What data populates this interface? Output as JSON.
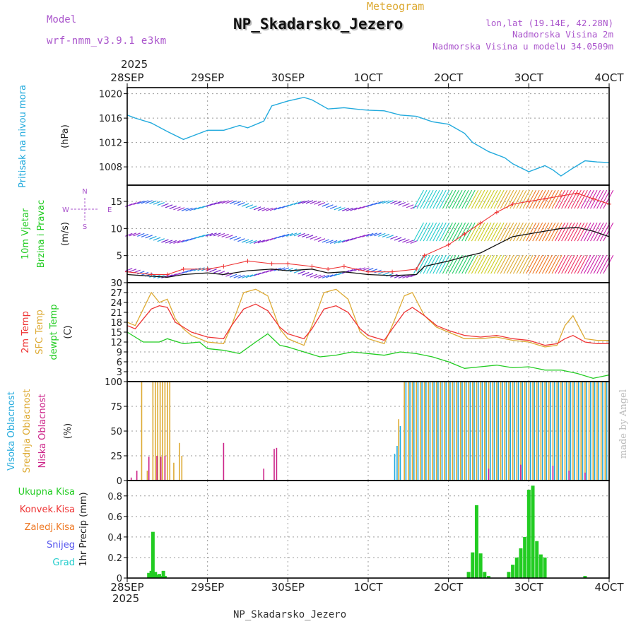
{
  "header": {
    "model_label": "Model",
    "model_name": "wrf-nmm_v3.9.1 e3km",
    "subtitle": "Meteogram",
    "title": "NP_Skadarsko_Jezero",
    "coords": "lon,lat (19.14E, 42.28N)",
    "elevation": "Nadmorska Visina 2m",
    "model_elevation": "Nadmorska Visina u modelu 34.0509m"
  },
  "year_top": "2025",
  "year_bottom": "2025",
  "footer": "NP_Skadarsko_Jezero",
  "credit": "made by Angel",
  "colors": {
    "pressure": "#22aadd",
    "temp2m": "#ee3333",
    "sfc": "#ddaa33",
    "dewpt": "#22cc22",
    "high": "#22aadd",
    "mid": "#ddaa33",
    "low": "#cc2288",
    "precip": "#22cc22",
    "conv": "#ee3333",
    "snow": "#5555ee",
    "grad": "#22cccc",
    "frz": "#ee7722",
    "wind": "#111111",
    "gust": "#ee3333"
  },
  "chart_data": [
    {
      "type": "line",
      "name": "pressure-panel",
      "ylabel": "Pritisak na nivou mora",
      "unit": "(hPa)",
      "ylim": [
        1005,
        1021
      ],
      "yticks": [
        1008,
        1012,
        1016,
        1020
      ],
      "xlim": [
        0,
        6
      ],
      "series": [
        {
          "name": "Pritisak",
          "x": [
            0,
            0.1,
            0.3,
            0.5,
            0.7,
            0.8,
            1.0,
            1.2,
            1.4,
            1.5,
            1.7,
            1.8,
            2.0,
            2.2,
            2.3,
            2.5,
            2.7,
            2.9,
            3.0,
            3.2,
            3.4,
            3.6,
            3.8,
            4.0,
            4.2,
            4.3,
            4.5,
            4.7,
            4.8,
            5.0,
            5.2,
            5.3,
            5.4,
            5.55,
            5.7,
            5.85,
            6.0
          ],
          "values": [
            1016.5,
            1016.0,
            1015.2,
            1013.8,
            1012.5,
            1013.0,
            1014.0,
            1014.0,
            1014.8,
            1014.4,
            1015.5,
            1018.0,
            1018.8,
            1019.4,
            1019.0,
            1017.5,
            1017.7,
            1017.4,
            1017.3,
            1017.2,
            1016.5,
            1016.3,
            1015.4,
            1015.0,
            1013.5,
            1012.0,
            1010.5,
            1009.5,
            1008.5,
            1007.2,
            1008.2,
            1007.5,
            1006.5,
            1007.8,
            1009.0,
            1008.8,
            1008.7
          ]
        }
      ]
    },
    {
      "type": "line",
      "name": "wind-panel",
      "ylabel": "10m Vjetar",
      "ylabel2": "Brzina i Pravac",
      "unit": "(m/s)",
      "compass": {
        "n": "N",
        "e": "E",
        "s": "S",
        "w": "W"
      },
      "ylim": [
        0,
        18
      ],
      "yticks": [
        0,
        5,
        10,
        15
      ],
      "xlim": [
        0,
        6
      ],
      "series": [
        {
          "name": "speed",
          "x": [
            0,
            0.3,
            0.5,
            0.7,
            1.0,
            1.2,
            1.5,
            1.8,
            2.0,
            2.3,
            2.5,
            2.7,
            3.0,
            3.3,
            3.6,
            3.7,
            4.0,
            4.2,
            4.4,
            4.6,
            4.8,
            5.0,
            5.2,
            5.4,
            5.6,
            5.8,
            6.0
          ],
          "values": [
            1.5,
            1.2,
            1.0,
            1.5,
            1.8,
            1.5,
            2.2,
            2.5,
            2.2,
            2.5,
            1.8,
            2.0,
            1.5,
            1.3,
            1.5,
            3.0,
            4.0,
            4.8,
            5.5,
            7.0,
            8.5,
            9.0,
            9.5,
            10.0,
            10.2,
            9.5,
            8.5
          ]
        },
        {
          "name": "gust",
          "x": [
            0,
            0.3,
            0.5,
            0.7,
            1.0,
            1.2,
            1.5,
            1.8,
            2.0,
            2.3,
            2.5,
            2.7,
            3.0,
            3.3,
            3.6,
            3.7,
            4.0,
            4.2,
            4.4,
            4.6,
            4.8,
            5.0,
            5.2,
            5.4,
            5.6,
            5.8,
            6.0
          ],
          "values": [
            2.0,
            1.5,
            1.5,
            2.5,
            2.5,
            3.0,
            4.0,
            3.5,
            3.5,
            3.0,
            2.5,
            3.0,
            2.0,
            2.0,
            2.5,
            5.0,
            7.0,
            9.0,
            11.0,
            13.0,
            14.5,
            15.0,
            15.5,
            16.0,
            16.5,
            15.5,
            14.5
          ]
        }
      ]
    },
    {
      "type": "line",
      "name": "temperature-panel",
      "ylabels": [
        "2m Temp",
        "SFC Temp",
        "dewpt Temp"
      ],
      "unit": "(C)",
      "ylim": [
        0,
        30
      ],
      "yticks": [
        0,
        3,
        6,
        9,
        12,
        15,
        18,
        21,
        24,
        27,
        30
      ],
      "xlim": [
        0,
        6
      ],
      "series": [
        {
          "name": "2m Temp",
          "x": [
            0,
            0.1,
            0.2,
            0.3,
            0.4,
            0.5,
            0.6,
            0.7,
            0.8,
            1.0,
            1.2,
            1.3,
            1.45,
            1.6,
            1.75,
            1.9,
            2.0,
            2.2,
            2.3,
            2.45,
            2.6,
            2.75,
            2.9,
            3.0,
            3.2,
            3.3,
            3.45,
            3.55,
            3.7,
            3.85,
            4.0,
            4.2,
            4.4,
            4.6,
            4.8,
            5.0,
            5.2,
            5.35,
            5.45,
            5.55,
            5.7,
            5.85,
            6.0
          ],
          "values": [
            17,
            16,
            19,
            22,
            23,
            22.5,
            18,
            16.5,
            15,
            13.5,
            13,
            17,
            22,
            23.5,
            21.5,
            16.5,
            14.5,
            13,
            16,
            22,
            23,
            21,
            16,
            14,
            12.5,
            16,
            21,
            22.5,
            20,
            17,
            15.5,
            14,
            13.5,
            14,
            13,
            12.5,
            11,
            11.5,
            13,
            14,
            12,
            11.5,
            11.5
          ]
        },
        {
          "name": "SFC Temp",
          "x": [
            0,
            0.1,
            0.2,
            0.3,
            0.4,
            0.5,
            0.6,
            0.7,
            0.8,
            1.0,
            1.2,
            1.3,
            1.45,
            1.6,
            1.75,
            1.9,
            2.0,
            2.2,
            2.3,
            2.45,
            2.6,
            2.75,
            2.9,
            3.0,
            3.2,
            3.3,
            3.45,
            3.55,
            3.7,
            3.85,
            4.0,
            4.2,
            4.4,
            4.6,
            4.8,
            5.0,
            5.2,
            5.35,
            5.45,
            5.55,
            5.7,
            5.85,
            6.0
          ],
          "values": [
            18,
            17,
            22,
            27,
            24,
            25,
            19,
            16,
            14,
            12,
            11.5,
            17,
            27,
            28,
            26,
            16,
            13,
            11,
            17,
            27,
            28,
            25,
            15,
            13,
            11.5,
            17,
            26,
            27,
            20,
            16.5,
            15,
            13,
            13,
            13.5,
            12.5,
            12,
            10.5,
            11,
            17,
            20,
            13,
            12.5,
            12.5
          ]
        },
        {
          "name": "dewpt Temp",
          "x": [
            0,
            0.2,
            0.4,
            0.5,
            0.7,
            0.9,
            1.0,
            1.2,
            1.4,
            1.6,
            1.75,
            1.9,
            2.0,
            2.2,
            2.4,
            2.6,
            2.8,
            3.0,
            3.2,
            3.4,
            3.6,
            3.8,
            4.0,
            4.2,
            4.4,
            4.6,
            4.8,
            5.0,
            5.2,
            5.4,
            5.6,
            5.8,
            6.0
          ],
          "values": [
            15,
            12,
            12,
            13,
            11.5,
            12,
            10,
            9.5,
            8.5,
            12,
            14.5,
            11,
            10.5,
            9,
            7.5,
            8,
            9,
            8.5,
            8,
            9,
            8.5,
            7.5,
            6,
            4,
            4.5,
            5,
            4.2,
            4.5,
            3.5,
            3.5,
            2.5,
            1,
            2
          ]
        }
      ]
    },
    {
      "type": "bar",
      "name": "cloud-panel",
      "ylabels": [
        "Visoka Oblacnost",
        "Srednja Oblacnost",
        "Niska Oblacnost"
      ],
      "unit": "(%)",
      "ylim": [
        0,
        100
      ],
      "yticks": [
        0,
        25,
        50,
        75,
        100
      ],
      "xlim": [
        0,
        6
      ],
      "series": [
        {
          "name": "mid",
          "x": [
            0.18,
            0.25,
            0.32,
            0.35,
            0.38,
            0.41,
            0.44,
            0.47,
            0.5,
            0.53,
            0.58,
            0.65,
            0.68,
            3.38,
            3.45,
            3.5,
            3.55,
            3.6,
            3.65,
            3.7,
            3.75,
            3.8,
            3.85,
            3.9,
            3.95,
            4.0,
            4.05,
            4.1,
            4.15,
            4.2,
            4.25,
            4.3,
            4.35,
            4.4,
            4.45,
            4.5,
            4.55,
            4.6,
            4.65,
            4.7,
            4.75,
            4.8,
            4.85,
            4.9,
            4.95,
            5.0,
            5.05,
            5.1,
            5.15,
            5.2,
            5.25,
            5.3,
            5.35,
            5.4,
            5.45,
            5.5,
            5.55,
            5.6,
            5.65,
            5.7,
            5.75,
            5.8,
            5.85,
            5.9,
            5.95,
            6.0
          ],
          "values": [
            100,
            10,
            100,
            100,
            100,
            100,
            100,
            100,
            100,
            100,
            18,
            38,
            25,
            62,
            100,
            100,
            100,
            100,
            100,
            100,
            100,
            100,
            100,
            100,
            100,
            100,
            100,
            100,
            100,
            100,
            100,
            100,
            100,
            100,
            100,
            100,
            100,
            100,
            100,
            100,
            100,
            100,
            100,
            100,
            100,
            100,
            100,
            100,
            100,
            100,
            100,
            100,
            100,
            100,
            100,
            100,
            100,
            100,
            100,
            100,
            100,
            100,
            100,
            100,
            100,
            100
          ]
        },
        {
          "name": "high",
          "x": [
            3.33,
            3.36,
            3.4,
            3.47,
            3.52,
            3.57,
            3.62,
            3.67,
            3.72,
            3.77,
            3.82,
            3.87,
            3.92,
            3.97,
            4.02,
            4.07,
            4.12,
            4.17,
            4.22,
            4.27,
            4.32,
            4.37,
            4.42,
            4.47,
            4.52,
            4.57,
            4.62,
            4.67,
            4.72,
            4.77,
            4.82,
            4.87,
            4.92,
            4.97,
            5.02,
            5.07,
            5.12,
            5.17,
            5.22,
            5.27,
            5.32,
            5.37,
            5.42,
            5.47,
            5.52,
            5.57,
            5.62,
            5.67,
            5.72,
            5.77,
            5.82,
            5.87,
            5.92,
            5.97
          ],
          "values": [
            27,
            35,
            55,
            100,
            100,
            100,
            100,
            100,
            100,
            100,
            100,
            100,
            100,
            100,
            100,
            100,
            100,
            100,
            100,
            100,
            100,
            100,
            100,
            100,
            100,
            100,
            100,
            100,
            100,
            100,
            100,
            100,
            100,
            100,
            100,
            100,
            100,
            100,
            100,
            100,
            100,
            100,
            100,
            100,
            100,
            100,
            100,
            100,
            100,
            100,
            100,
            100,
            100,
            100
          ]
        },
        {
          "name": "low",
          "x": [
            0.05,
            0.12,
            0.27,
            0.37,
            0.42,
            0.47,
            1.2,
            1.7,
            1.83,
            1.86,
            4.5,
            4.9,
            5.3,
            5.5,
            5.7
          ],
          "values": [
            3,
            10,
            24,
            25,
            24,
            25,
            38,
            12,
            32,
            33,
            12,
            16,
            15,
            10,
            8
          ]
        }
      ]
    },
    {
      "type": "bar",
      "name": "precip-panel",
      "ylabels": [
        "Ukupna Kisa",
        "Konvek.Kisa",
        "Zaledj.Kisa",
        "Snijeg",
        "Grad"
      ],
      "unit": "1hr Precip (mm)",
      "ylim": [
        0,
        0.95
      ],
      "yticks": [
        0,
        0.2,
        0.4,
        0.6,
        0.8
      ],
      "xlim": [
        0,
        6
      ],
      "series": [
        {
          "name": "Ukupna Kisa",
          "x": [
            0.27,
            0.3,
            0.32,
            0.35,
            0.38,
            0.4,
            0.42,
            0.45,
            0.47,
            4.25,
            4.3,
            4.35,
            4.4,
            4.45,
            4.5,
            4.75,
            4.8,
            4.85,
            4.9,
            4.95,
            5.0,
            5.05,
            5.1,
            5.15,
            5.2,
            5.7
          ],
          "values": [
            0.05,
            0.07,
            0.45,
            0.06,
            0.03,
            0.04,
            0.02,
            0.07,
            0.02,
            0.06,
            0.25,
            0.71,
            0.24,
            0.06,
            0.02,
            0.06,
            0.13,
            0.2,
            0.29,
            0.4,
            0.86,
            0.9,
            0.36,
            0.23,
            0.2,
            0.02
          ]
        }
      ]
    }
  ],
  "x_axis": {
    "labels": [
      "28SEP",
      "29SEP",
      "30SEP",
      "1OCT",
      "2OCT",
      "3OCT",
      "4OCT"
    ],
    "top_labels": [
      "28SEP",
      "29SEP",
      "30SEP",
      "1OCT",
      "2OCT",
      "3OCT",
      "4OCT"
    ],
    "bottom_labels": [
      "28SEP",
      "29SEP",
      "30SEP",
      "1OCT",
      "2OCT",
      "3OCT",
      "4OCT"
    ]
  }
}
